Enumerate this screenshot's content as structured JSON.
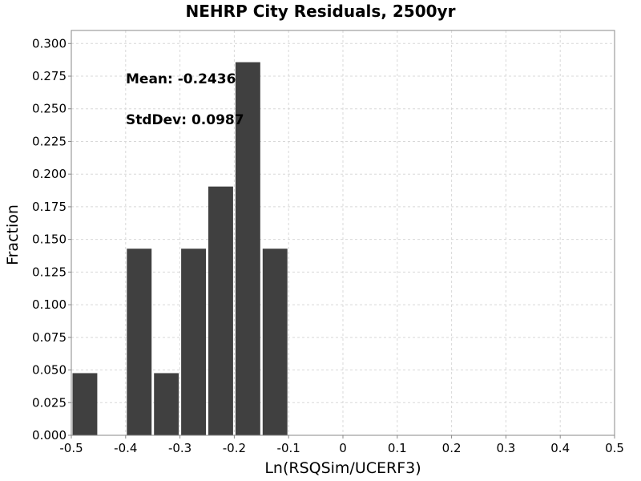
{
  "chart_data": {
    "type": "bar",
    "title": "NEHRP City Residuals, 2500yr",
    "xlabel": "Ln(RSQSim/UCERF3)",
    "ylabel": "Fraction",
    "xlim": [
      -0.5,
      0.5
    ],
    "ylim": [
      0,
      0.31
    ],
    "x_ticks": [
      "-0.5",
      "-0.4",
      "-0.3",
      "-0.2",
      "-0.1",
      "0",
      "0.1",
      "0.2",
      "0.3",
      "0.4",
      "0.5"
    ],
    "y_ticks": [
      "0.000",
      "0.025",
      "0.050",
      "0.075",
      "0.100",
      "0.125",
      "0.150",
      "0.175",
      "0.200",
      "0.225",
      "0.250",
      "0.275",
      "0.300"
    ],
    "bin_width": 0.05,
    "bins": [
      {
        "center": -0.475,
        "value": 0.0476
      },
      {
        "center": -0.425,
        "value": 0.0
      },
      {
        "center": -0.375,
        "value": 0.1429
      },
      {
        "center": -0.325,
        "value": 0.0476
      },
      {
        "center": -0.275,
        "value": 0.1429
      },
      {
        "center": -0.225,
        "value": 0.1905
      },
      {
        "center": -0.175,
        "value": 0.2857
      },
      {
        "center": -0.125,
        "value": 0.1429
      }
    ],
    "annotations": [
      "Mean: -0.2436",
      "StdDev: 0.0987"
    ],
    "grid": true,
    "bar_color": "#404040"
  }
}
